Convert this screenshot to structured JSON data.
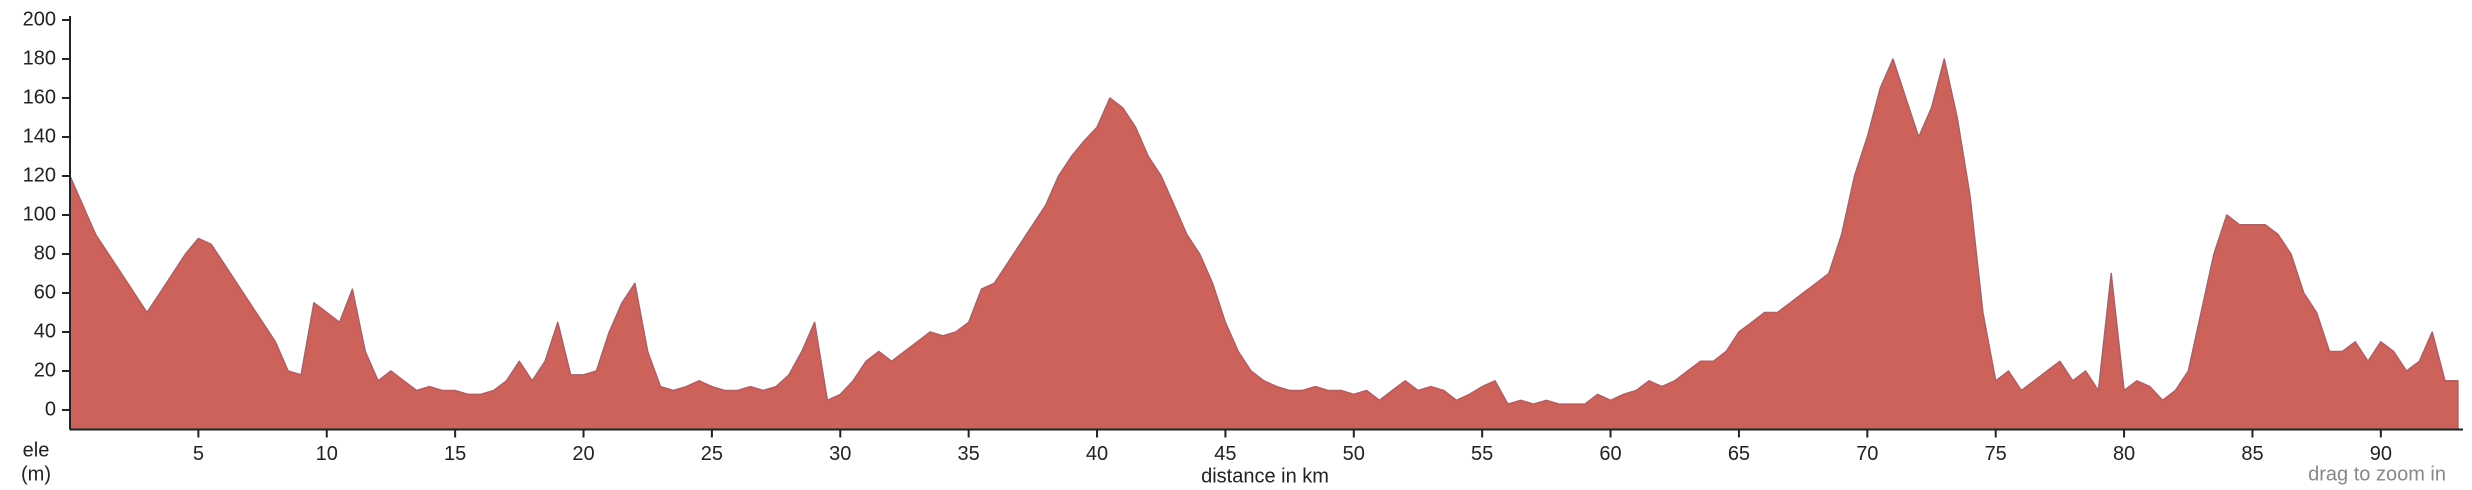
{
  "chart_data": {
    "type": "area",
    "x_label": "distance in km",
    "y_label_lines": [
      "ele",
      "(m)"
    ],
    "note": "drag to zoom in",
    "color": "#cd625a",
    "line_color": "#a2646a",
    "xlim": [
      0,
      93.2
    ],
    "ylim": [
      -10,
      200
    ],
    "xticks": [
      5,
      10,
      15,
      20,
      25,
      30,
      35,
      40,
      45,
      50,
      55,
      60,
      65,
      70,
      75,
      80,
      85,
      90
    ],
    "yticks": [
      0,
      20,
      40,
      60,
      80,
      100,
      120,
      140,
      160,
      180,
      200
    ],
    "x": [
      0,
      0.5,
      1,
      1.5,
      2,
      2.5,
      3,
      3.5,
      4,
      4.5,
      5,
      5.5,
      6,
      6.5,
      7,
      7.5,
      8,
      8.5,
      9,
      9.5,
      10,
      10.5,
      11,
      11.5,
      12,
      12.5,
      13,
      13.5,
      14,
      14.5,
      15,
      15.5,
      16,
      16.5,
      17,
      17.5,
      18,
      18.5,
      19,
      19.5,
      20,
      20.5,
      21,
      21.5,
      22,
      22.5,
      23,
      23.5,
      24,
      24.5,
      25,
      25.5,
      26,
      26.5,
      27,
      27.5,
      28,
      28.5,
      29,
      29.5,
      30,
      30.5,
      31,
      31.5,
      32,
      32.5,
      33,
      33.5,
      34,
      34.5,
      35,
      35.5,
      36,
      36.5,
      37,
      37.5,
      38,
      38.5,
      39,
      39.5,
      40,
      40.5,
      41,
      41.5,
      42,
      42.5,
      43,
      43.5,
      44,
      44.5,
      45,
      45.5,
      46,
      46.5,
      47,
      47.5,
      48,
      48.5,
      49,
      49.5,
      50,
      50.5,
      51,
      51.5,
      52,
      52.5,
      53,
      53.5,
      54,
      54.5,
      55,
      55.5,
      56,
      56.5,
      57,
      57.5,
      58,
      58.5,
      59,
      59.5,
      60,
      60.5,
      61,
      61.5,
      62,
      62.5,
      63,
      63.5,
      64,
      64.5,
      65,
      65.5,
      66,
      66.5,
      67,
      67.5,
      68,
      68.5,
      69,
      69.5,
      70,
      70.5,
      71,
      71.5,
      72,
      72.5,
      73,
      73.5,
      74,
      74.5,
      75,
      75.5,
      76,
      76.5,
      77,
      77.5,
      78,
      78.5,
      79,
      79.5,
      80,
      80.5,
      81,
      81.5,
      82,
      82.5,
      83,
      83.5,
      84,
      84.5,
      85,
      85.5,
      86,
      86.5,
      87,
      87.5,
      88,
      88.5,
      89,
      89.5,
      90,
      90.5,
      91,
      91.5,
      92,
      92.5,
      93
    ],
    "values": [
      120,
      105,
      90,
      80,
      70,
      60,
      50,
      60,
      70,
      80,
      88,
      85,
      75,
      65,
      55,
      45,
      35,
      20,
      18,
      55,
      50,
      45,
      62,
      30,
      15,
      20,
      15,
      10,
      12,
      10,
      10,
      8,
      8,
      10,
      15,
      25,
      15,
      25,
      45,
      18,
      18,
      20,
      40,
      55,
      65,
      30,
      12,
      10,
      12,
      15,
      12,
      10,
      10,
      12,
      10,
      12,
      18,
      30,
      45,
      5,
      8,
      15,
      25,
      30,
      25,
      30,
      35,
      40,
      38,
      40,
      45,
      62,
      65,
      75,
      85,
      95,
      105,
      120,
      130,
      138,
      145,
      160,
      155,
      145,
      130,
      120,
      105,
      90,
      80,
      65,
      45,
      30,
      20,
      15,
      12,
      10,
      10,
      12,
      10,
      10,
      8,
      10,
      5,
      10,
      15,
      10,
      12,
      10,
      5,
      8,
      12,
      15,
      3,
      5,
      3,
      5,
      3,
      3,
      3,
      8,
      5,
      8,
      10,
      15,
      12,
      15,
      20,
      25,
      25,
      30,
      40,
      45,
      50,
      50,
      55,
      60,
      65,
      70,
      90,
      120,
      140,
      165,
      180,
      160,
      140,
      155,
      180,
      150,
      110,
      50,
      15,
      20,
      10,
      15,
      20,
      25,
      15,
      20,
      10,
      70,
      10,
      15,
      12,
      5,
      10,
      20,
      50,
      80,
      100,
      95,
      95,
      95,
      90,
      80,
      60,
      50,
      30,
      30,
      35,
      25,
      35,
      30,
      20,
      25,
      40,
      15,
      15
    ]
  }
}
